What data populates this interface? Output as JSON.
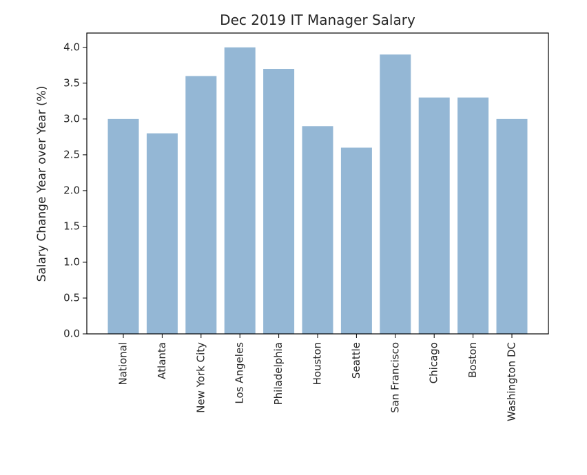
{
  "chart_data": {
    "type": "bar",
    "title": "Dec 2019 IT Manager Salary",
    "xlabel": "",
    "ylabel": "Salary Change Year over Year (%)",
    "categories": [
      "National",
      "Atlanta",
      "New York City",
      "Los Angeles",
      "Philadelphia",
      "Houston",
      "Seattle",
      "San Francisco",
      "Chicago",
      "Boston",
      "Washington DC"
    ],
    "values": [
      3.0,
      2.8,
      3.6,
      4.0,
      3.7,
      2.9,
      2.6,
      3.9,
      3.3,
      3.3,
      3.0
    ],
    "ylim": [
      0,
      4.2
    ],
    "yticks": [
      "0.0",
      "0.5",
      "1.0",
      "1.5",
      "2.0",
      "2.5",
      "3.0",
      "3.5",
      "4.0"
    ],
    "grid": false,
    "colors": {
      "bar": "#94b7d5",
      "axis": "#000000",
      "text": "#262626"
    }
  }
}
